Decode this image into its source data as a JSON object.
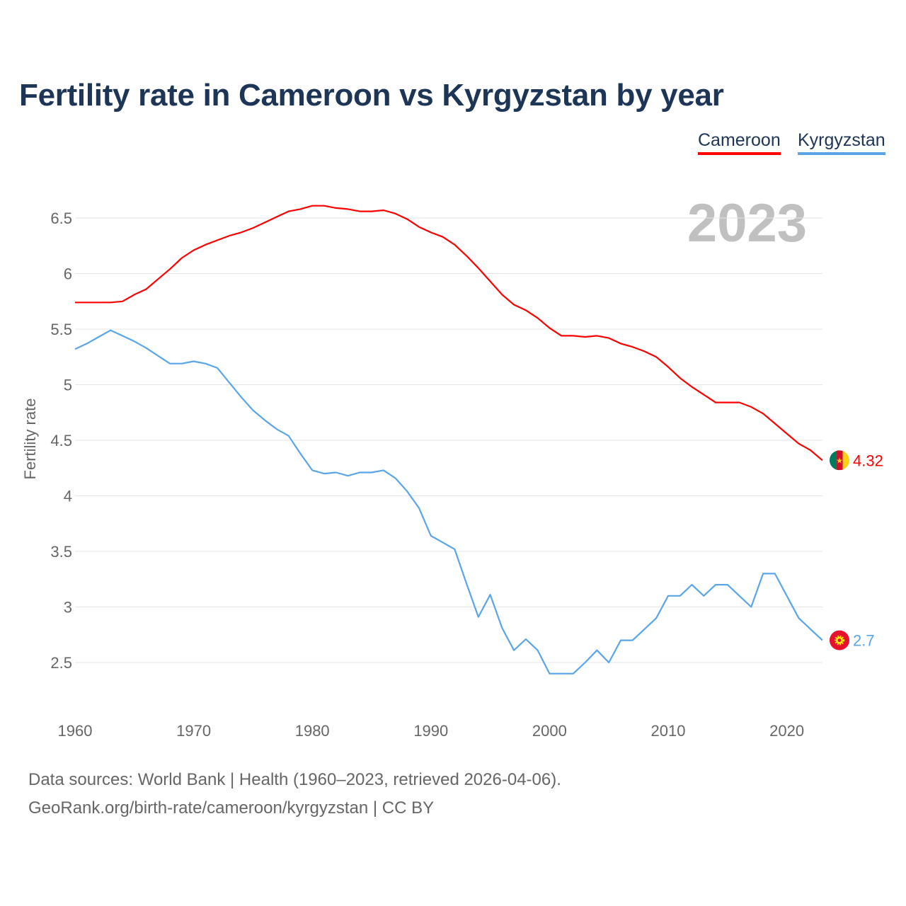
{
  "title": "Fertility rate in Cameroon vs Kyrgyzstan by year",
  "footer": {
    "line1": "Data sources: World Bank | Health (1960–2023, retrieved 2026-04-06).",
    "line2": "GeoRank.org/birth-rate/cameroon/kyrgyzstan | CC BY"
  },
  "chart_data": {
    "type": "line",
    "title": "Fertility rate in Cameroon vs Kyrgyzstan by year",
    "xlabel": "",
    "ylabel": "Fertility rate",
    "year_label": "2023",
    "xlim": [
      1960,
      2023
    ],
    "ylim": [
      2.1,
      6.85
    ],
    "x_ticks": [
      1960,
      1970,
      1980,
      1990,
      2000,
      2010,
      2020
    ],
    "y_ticks": [
      2.5,
      3,
      3.5,
      4,
      4.5,
      5,
      5.5,
      6,
      6.5
    ],
    "y_tick_labels": [
      "2.5",
      "3",
      "3.5",
      "4",
      "4.5",
      "5",
      "5.5",
      "6",
      "6.5"
    ],
    "grid": true,
    "legend_placement": "top-right",
    "x": [
      1960,
      1961,
      1962,
      1963,
      1964,
      1965,
      1966,
      1967,
      1968,
      1969,
      1970,
      1971,
      1972,
      1973,
      1974,
      1975,
      1976,
      1977,
      1978,
      1979,
      1980,
      1981,
      1982,
      1983,
      1984,
      1985,
      1986,
      1987,
      1988,
      1989,
      1990,
      1991,
      1992,
      1993,
      1994,
      1995,
      1996,
      1997,
      1998,
      1999,
      2000,
      2001,
      2002,
      2003,
      2004,
      2005,
      2006,
      2007,
      2008,
      2009,
      2010,
      2011,
      2012,
      2013,
      2014,
      2015,
      2016,
      2017,
      2018,
      2019,
      2020,
      2021,
      2022,
      2023
    ],
    "series": [
      {
        "name": "Cameroon",
        "color": "#ff0000",
        "end_label": "4.32",
        "values": [
          5.74,
          5.74,
          5.74,
          5.74,
          5.75,
          5.81,
          5.86,
          5.95,
          6.04,
          6.14,
          6.21,
          6.26,
          6.3,
          6.34,
          6.37,
          6.41,
          6.46,
          6.51,
          6.56,
          6.58,
          6.61,
          6.61,
          6.59,
          6.58,
          6.56,
          6.56,
          6.57,
          6.54,
          6.49,
          6.42,
          6.37,
          6.33,
          6.26,
          6.16,
          6.05,
          5.93,
          5.81,
          5.72,
          5.67,
          5.6,
          5.51,
          5.44,
          5.44,
          5.43,
          5.44,
          5.42,
          5.37,
          5.34,
          5.3,
          5.25,
          5.16,
          5.06,
          4.98,
          4.91,
          4.84,
          4.84,
          4.84,
          4.8,
          4.74,
          4.65,
          4.56,
          4.47,
          4.41,
          4.32
        ]
      },
      {
        "name": "Kyrgyzstan",
        "color": "#5aa5e8",
        "end_label": "2.7",
        "values": [
          5.32,
          5.37,
          5.43,
          5.49,
          5.44,
          5.39,
          5.33,
          5.26,
          5.19,
          5.19,
          5.21,
          5.19,
          5.15,
          5.02,
          4.89,
          4.77,
          4.68,
          4.6,
          4.54,
          4.38,
          4.23,
          4.2,
          4.21,
          4.18,
          4.21,
          4.21,
          4.23,
          4.16,
          4.04,
          3.89,
          3.64,
          3.58,
          3.52,
          3.21,
          2.91,
          3.11,
          2.81,
          2.61,
          2.71,
          2.61,
          2.4,
          2.4,
          2.4,
          2.5,
          2.61,
          2.5,
          2.7,
          2.7,
          2.8,
          2.9,
          3.1,
          3.1,
          3.2,
          3.1,
          3.2,
          3.2,
          3.1,
          3.0,
          3.3,
          3.3,
          3.1,
          2.9,
          2.8,
          2.7
        ]
      }
    ]
  }
}
